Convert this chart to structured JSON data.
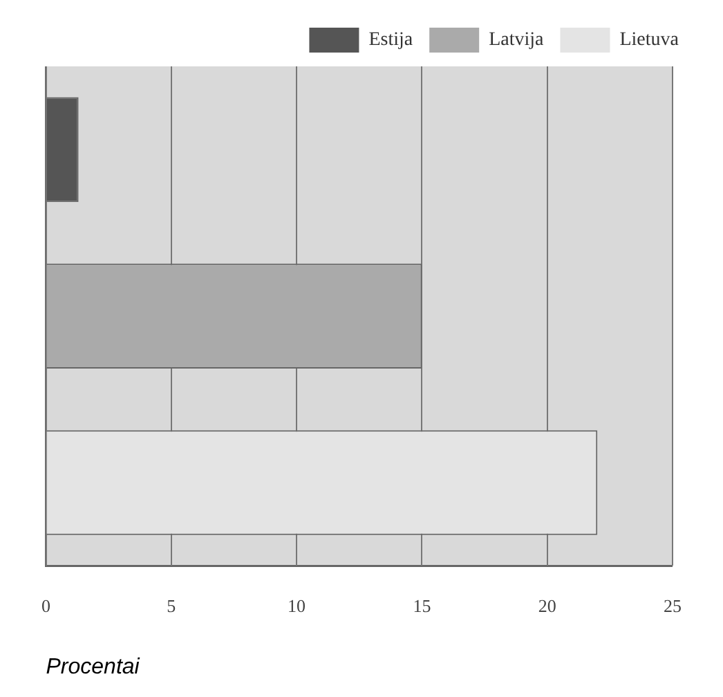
{
  "chart_data": {
    "type": "bar",
    "orientation": "horizontal",
    "xlabel": "Procentai",
    "categories": [
      null,
      null,
      null
    ],
    "series": [
      {
        "name": "Estija",
        "color": "#555555",
        "values": [
          1.3,
          null,
          null
        ]
      },
      {
        "name": "Latvija",
        "color": "#aaaaaa",
        "values": [
          null,
          15,
          null
        ]
      },
      {
        "name": "Lietuva",
        "color": "#e4e4e4",
        "values": [
          null,
          null,
          22
        ]
      }
    ],
    "xlim": [
      0,
      25
    ],
    "xticks": [
      0,
      5,
      10,
      15,
      20,
      25
    ],
    "grid": "x",
    "legend": "top right"
  }
}
